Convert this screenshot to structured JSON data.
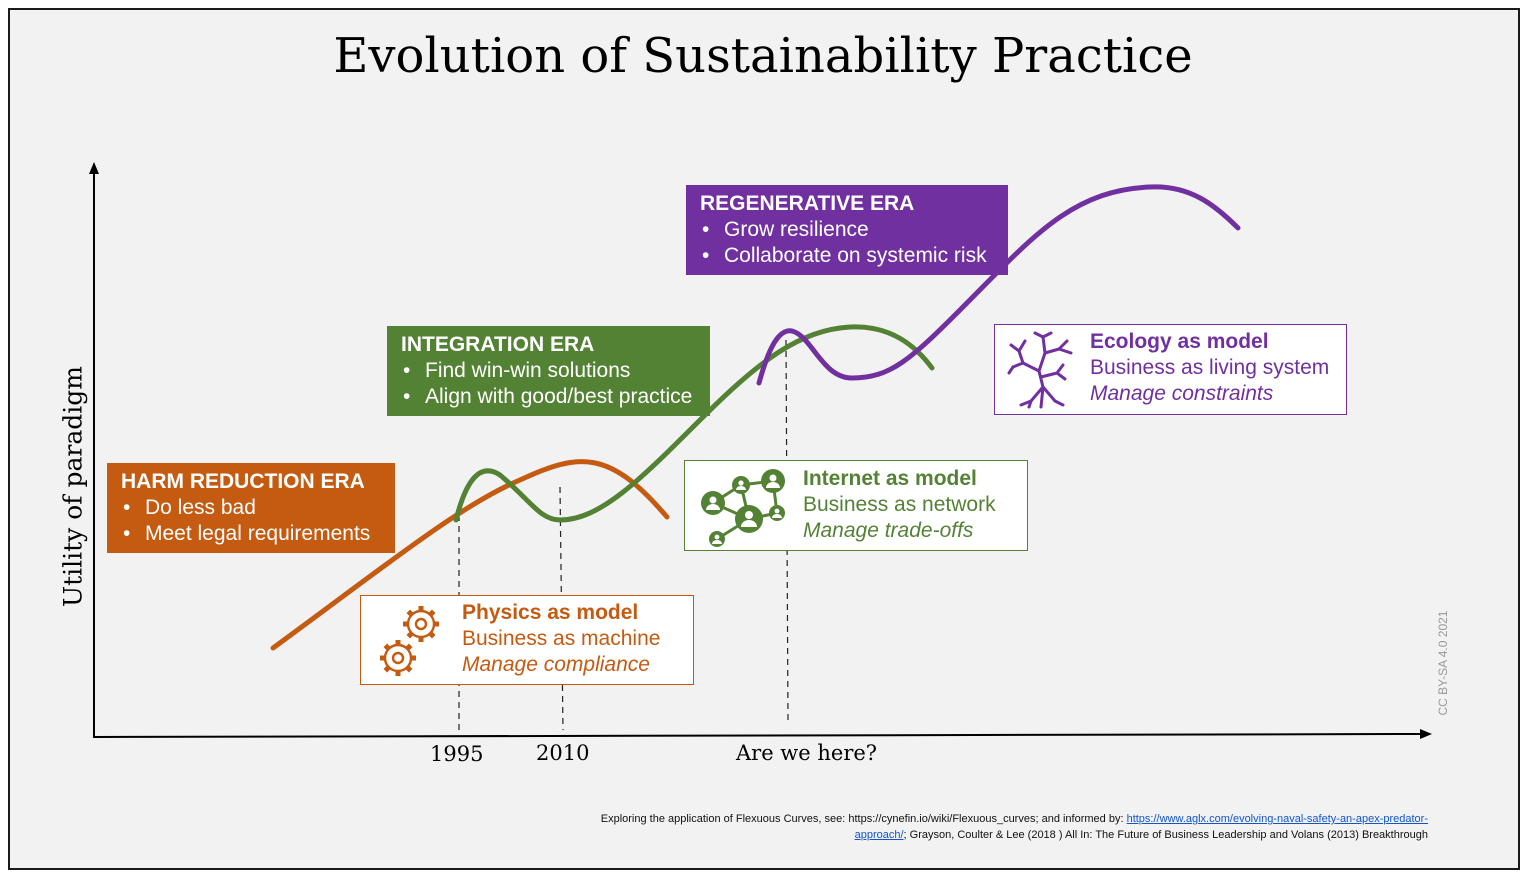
{
  "title": "Evolution of Sustainability Practice",
  "axes": {
    "y_label": "Utility of paradigm",
    "x_labels": [
      "1995",
      "2010",
      "Are we here?"
    ]
  },
  "eras": [
    {
      "title": "HARM REDUCTION ERA",
      "bullets": [
        "Do less bad",
        "Meet legal requirements"
      ],
      "color": "#c55a11"
    },
    {
      "title": "INTEGRATION ERA",
      "bullets": [
        "Find win-win solutions",
        "Align with good/best practice"
      ],
      "color": "#548235"
    },
    {
      "title": "REGENERATIVE ERA",
      "bullets": [
        "Grow resilience",
        "Collaborate on systemic risk"
      ],
      "color": "#7030a0"
    }
  ],
  "models": [
    {
      "title": "Physics as model",
      "subtitle": "Business as machine",
      "emphasis": "Manage compliance",
      "icon": "gears-icon",
      "color": "#c55a11"
    },
    {
      "title": "Internet as model",
      "subtitle": "Business as network",
      "emphasis": "Manage trade-offs",
      "icon": "network-icon",
      "color": "#548235"
    },
    {
      "title": "Ecology as model",
      "subtitle": "Business as living system",
      "emphasis": "Manage constraints",
      "icon": "tree-icon",
      "color": "#7030a0"
    }
  ],
  "license": "CC BY-SA 4.0 2021",
  "footnote": {
    "text_before": "Exploring the application of Flexuous Curves, see: https://cynefin.io/wiki/Flexuous_curves; and informed by: ",
    "link": "https://www.aglx.com/evolving-naval-safety-an-apex-predator-approach/",
    "text_after": "; Grayson, Coulter & Lee (2018 ) All In: The Future of Business Leadership and Volans (2013) Breakthrough"
  }
}
